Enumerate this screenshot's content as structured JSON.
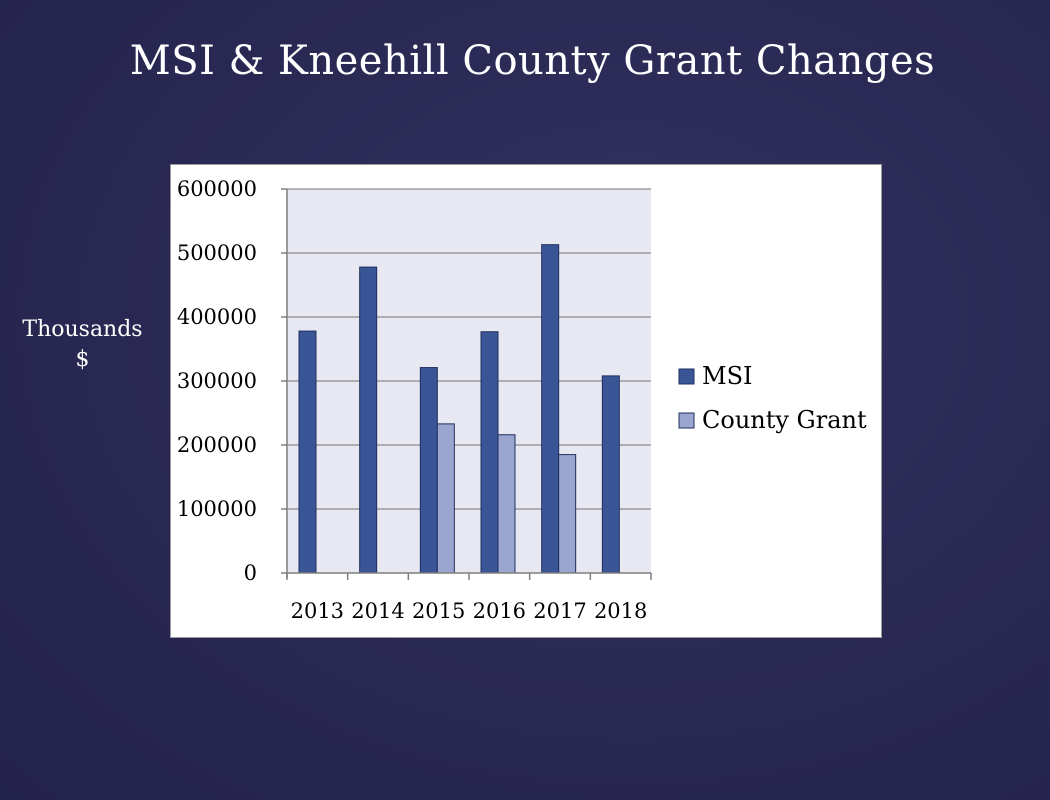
{
  "slide": {
    "title": "MSI & Kneehill County Grant Changes",
    "side_label_line1": "Thousands",
    "side_label_line2": "$"
  },
  "colors": {
    "msi": "#3a5596",
    "county_grant": "#9aa6cf",
    "plot_bg": "#e8e8f2",
    "grid": "#8c8c8c"
  },
  "chart_data": {
    "type": "bar",
    "categories": [
      "2013",
      "2014",
      "2015",
      "2016",
      "2017",
      "2018"
    ],
    "series": [
      {
        "name": "MSI",
        "values": [
          378000,
          478000,
          321000,
          377000,
          513000,
          308000
        ]
      },
      {
        "name": "County Grant",
        "values": [
          null,
          null,
          233000,
          216000,
          185000,
          null
        ]
      }
    ],
    "ylim": [
      0,
      600000
    ],
    "yticks": [
      "0",
      "100000",
      "200000",
      "300000",
      "400000",
      "500000",
      "600000"
    ],
    "grid": true,
    "legend": "right"
  }
}
